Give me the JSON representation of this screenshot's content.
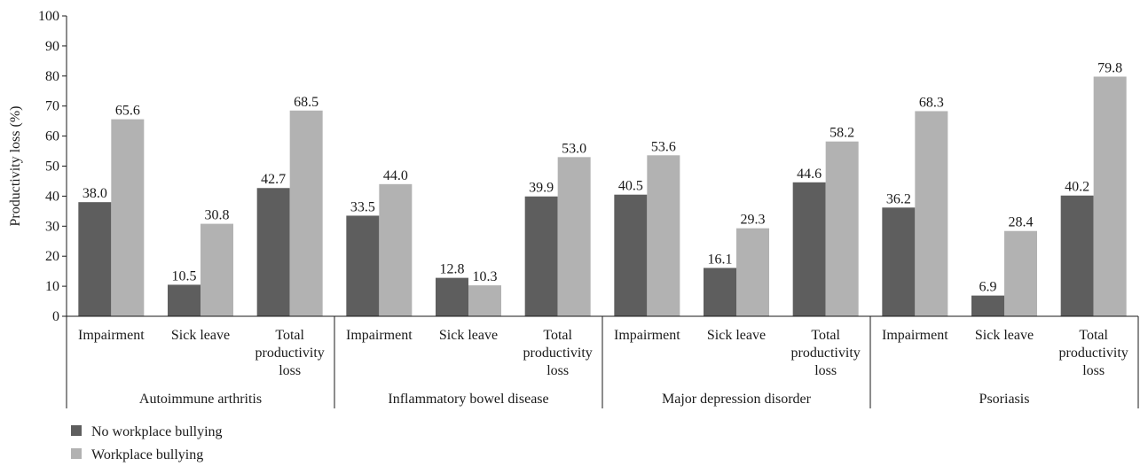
{
  "chart_data": {
    "type": "bar",
    "ylabel": "Productivity loss (%)",
    "ylim": [
      0,
      100
    ],
    "yticks": [
      0,
      10,
      20,
      30,
      40,
      50,
      60,
      70,
      80,
      90,
      100
    ],
    "groups": [
      {
        "name": "Autoimmune arthritis",
        "categories": [
          {
            "lines": [
              "Impairment"
            ],
            "values": [
              38.0,
              65.6
            ],
            "labels": [
              "38.0",
              "65.6"
            ]
          },
          {
            "lines": [
              "Sick leave"
            ],
            "values": [
              10.5,
              30.8
            ],
            "labels": [
              "10.5",
              "30.8"
            ]
          },
          {
            "lines": [
              "Total",
              "productivity",
              "loss"
            ],
            "values": [
              42.7,
              68.5
            ],
            "labels": [
              "42.7",
              "68.5"
            ]
          }
        ]
      },
      {
        "name": "Inflammatory bowel disease",
        "categories": [
          {
            "lines": [
              "Impairment"
            ],
            "values": [
              33.5,
              44.0
            ],
            "labels": [
              "33.5",
              "44.0"
            ]
          },
          {
            "lines": [
              "Sick leave"
            ],
            "values": [
              12.8,
              10.3
            ],
            "labels": [
              "12.8",
              "10.3"
            ]
          },
          {
            "lines": [
              "Total",
              "productivity",
              "loss"
            ],
            "values": [
              39.9,
              53.0
            ],
            "labels": [
              "39.9",
              "53.0"
            ]
          }
        ]
      },
      {
        "name": "Major depression disorder",
        "categories": [
          {
            "lines": [
              "Impairment"
            ],
            "values": [
              40.5,
              53.6
            ],
            "labels": [
              "40.5",
              "53.6"
            ]
          },
          {
            "lines": [
              "Sick leave"
            ],
            "values": [
              16.1,
              29.3
            ],
            "labels": [
              "16.1",
              "29.3"
            ]
          },
          {
            "lines": [
              "Total",
              "productivity",
              "loss"
            ],
            "values": [
              44.6,
              58.2
            ],
            "labels": [
              "44.6",
              "58.2"
            ]
          }
        ]
      },
      {
        "name": "Psoriasis",
        "categories": [
          {
            "lines": [
              "Impairment"
            ],
            "values": [
              36.2,
              68.3
            ],
            "labels": [
              "36.2",
              "68.3"
            ]
          },
          {
            "lines": [
              "Sick leave"
            ],
            "values": [
              6.9,
              28.4
            ],
            "labels": [
              "6.9",
              "28.4"
            ]
          },
          {
            "lines": [
              "Total",
              "productivity",
              "loss"
            ],
            "values": [
              40.2,
              79.8
            ],
            "labels": [
              "40.2",
              "79.8"
            ]
          }
        ]
      }
    ],
    "series": [
      {
        "name": "No workplace bullying",
        "color": "#5e5e5e"
      },
      {
        "name": "Workplace bullying",
        "color": "#b2b2b2"
      }
    ],
    "legend_position": "bottom-left",
    "grid": false
  }
}
